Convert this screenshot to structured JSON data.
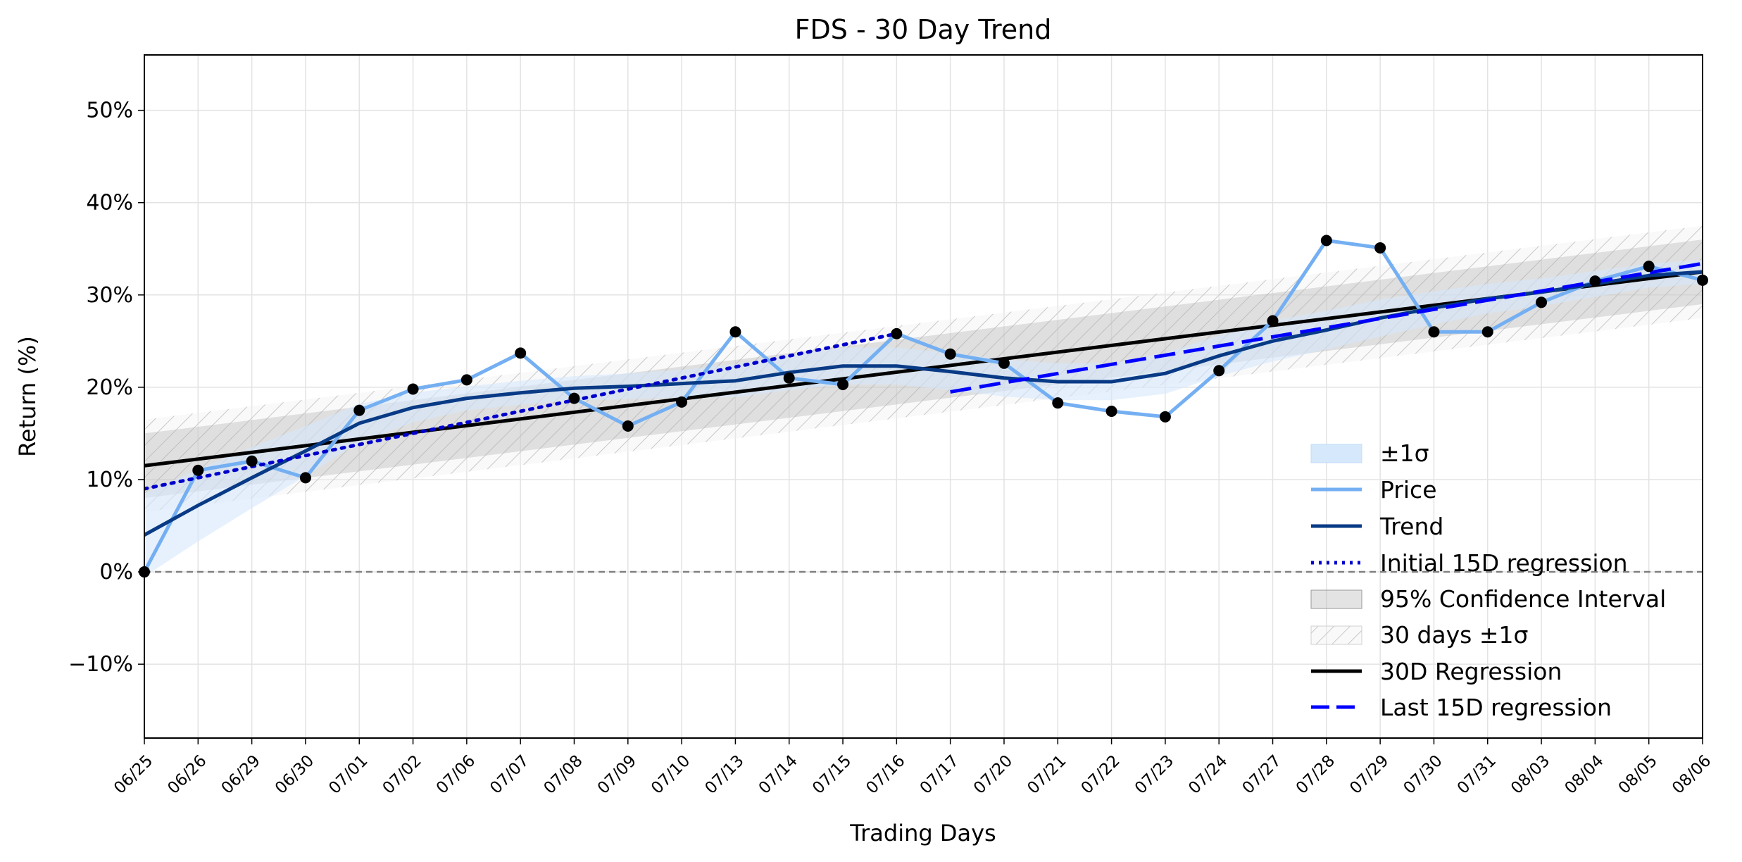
{
  "chart_data": {
    "type": "line",
    "title": "FDS - 30 Day Trend",
    "xlabel": "Trading Days",
    "ylabel": "Return (%)",
    "ylim": [
      -18,
      56
    ],
    "yticks": [
      -10,
      0,
      10,
      20,
      30,
      40,
      50
    ],
    "ytick_labels": [
      "−10%",
      "0%",
      "10%",
      "20%",
      "30%",
      "40%",
      "50%"
    ],
    "grid": true,
    "legend_position": "lower-right",
    "categories": [
      "06/25",
      "06/26",
      "06/29",
      "06/30",
      "07/01",
      "07/02",
      "07/06",
      "07/07",
      "07/08",
      "07/09",
      "07/10",
      "07/13",
      "07/14",
      "07/15",
      "07/16",
      "07/17",
      "07/20",
      "07/21",
      "07/22",
      "07/23",
      "07/24",
      "07/27",
      "07/28",
      "07/29",
      "07/30",
      "07/31",
      "08/03",
      "08/04",
      "08/05",
      "08/06"
    ],
    "series": [
      {
        "name": "Price",
        "kind": "line-markers",
        "color": "#74aff2",
        "values": [
          0.0,
          11.0,
          12.0,
          10.2,
          17.5,
          19.8,
          20.8,
          23.7,
          18.8,
          15.8,
          18.4,
          26.0,
          21.0,
          20.3,
          25.8,
          23.6,
          22.6,
          18.3,
          17.4,
          16.8,
          21.8,
          27.2,
          35.9,
          35.1,
          26.0,
          26.0,
          29.2,
          31.5,
          33.1,
          31.6
        ]
      },
      {
        "name": "Trend",
        "kind": "line",
        "color": "#083a85",
        "values": [
          4.0,
          7.2,
          10.2,
          13.1,
          16.1,
          17.8,
          18.8,
          19.4,
          19.9,
          20.1,
          20.4,
          20.7,
          21.6,
          22.3,
          22.3,
          21.7,
          21.0,
          20.6,
          20.6,
          21.5,
          23.4,
          25.0,
          26.2,
          27.5,
          28.6,
          29.6,
          30.3,
          31.2,
          32.1,
          32.5
        ]
      },
      {
        "name": "Initial 15D regression",
        "kind": "dotted",
        "color": "#0000cc",
        "x_range": [
          0,
          14
        ],
        "y_range": [
          9.0,
          25.8
        ]
      },
      {
        "name": "30D Regression",
        "kind": "line",
        "color": "#000000",
        "x_range": [
          0,
          29
        ],
        "y_range": [
          11.5,
          32.5
        ]
      },
      {
        "name": "Last 15D regression",
        "kind": "dashed",
        "color": "#0000ff",
        "x_range": [
          15,
          29
        ],
        "y_range": [
          19.5,
          33.4
        ]
      }
    ],
    "bands": [
      {
        "name": "±1σ",
        "color": "#d6e8fb",
        "center": "Trend",
        "half_width": [
          4.5,
          3.9,
          3.3,
          2.7,
          2.1,
          1.6,
          1.3,
          1.3,
          1.3,
          1.4,
          1.5,
          1.8,
          1.9,
          2.0,
          2.0,
          2.0,
          2.0,
          2.0,
          2.0,
          2.2,
          2.2,
          2.2,
          2.1,
          2.0,
          1.8,
          1.6,
          1.5,
          1.4,
          1.3,
          1.3
        ]
      },
      {
        "name": "95% Confidence Interval",
        "color": "#b0b0b0",
        "center": "30D Regression",
        "half_width": [
          3.5,
          3.5
        ]
      },
      {
        "name": "30 days ±1σ",
        "color": "#cfcfcf",
        "center": "30D Regression",
        "half_width": [
          5.0,
          5.0
        ]
      }
    ],
    "reference_line": {
      "y": 0,
      "color": "#808080",
      "style": "dashed"
    }
  }
}
